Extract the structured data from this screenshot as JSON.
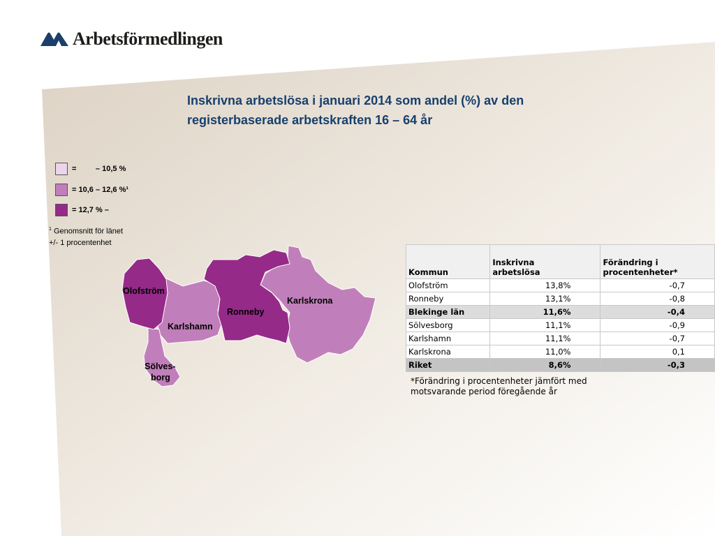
{
  "header": {
    "logo_text": "Arbetsförmedlingen",
    "logo_icon": "arbetsformedlingen-mark-icon"
  },
  "title": {
    "line1": "Inskrivna arbetslösa i januari 2014 som andel (%) av den",
    "line2": "registerbaserade arbetskraften 16 – 64 år"
  },
  "colors": {
    "light": "#ead5ea",
    "medium": "#c07fba",
    "dark": "#952a88",
    "title": "#17406d"
  },
  "legend": [
    {
      "label": "=         – 10,5 %"
    },
    {
      "label": "= 10,6 – 12,6 %¹"
    },
    {
      "label": "= 12,7 % –"
    }
  ],
  "footnote": {
    "marker": "1",
    "line1": " Genomsnitt för länet",
    "line2": "+/- 1 procentenhet"
  },
  "map": {
    "labels": {
      "olofstrom": "Olofström",
      "karlshamn": "Karlshamn",
      "ronneby": "Ronneby",
      "karlskrona": "Karlskrona",
      "solves1": "Sölves-",
      "solves2": "borg"
    }
  },
  "table": {
    "headers": [
      "Kommun",
      "Inskrivna arbetslösa",
      "Förändring i procentenheter*"
    ],
    "rows": [
      [
        "Olofström",
        "13,8%",
        "-0,7"
      ],
      [
        "Ronneby",
        "13,1%",
        "-0,8"
      ],
      [
        "Blekinge län",
        "11,6%",
        "-0,4"
      ],
      [
        "Sölvesborg",
        "11,1%",
        "-0,9"
      ],
      [
        "Karlshamn",
        "11,1%",
        "-0,7"
      ],
      [
        "Karlskrona",
        "11,0%",
        "0,1"
      ],
      [
        "Riket",
        "8,6%",
        "-0,3"
      ]
    ],
    "note_line1": "*Förändring i procentenheter jämfört med",
    "note_line2": "motsvarande period föregående år"
  }
}
